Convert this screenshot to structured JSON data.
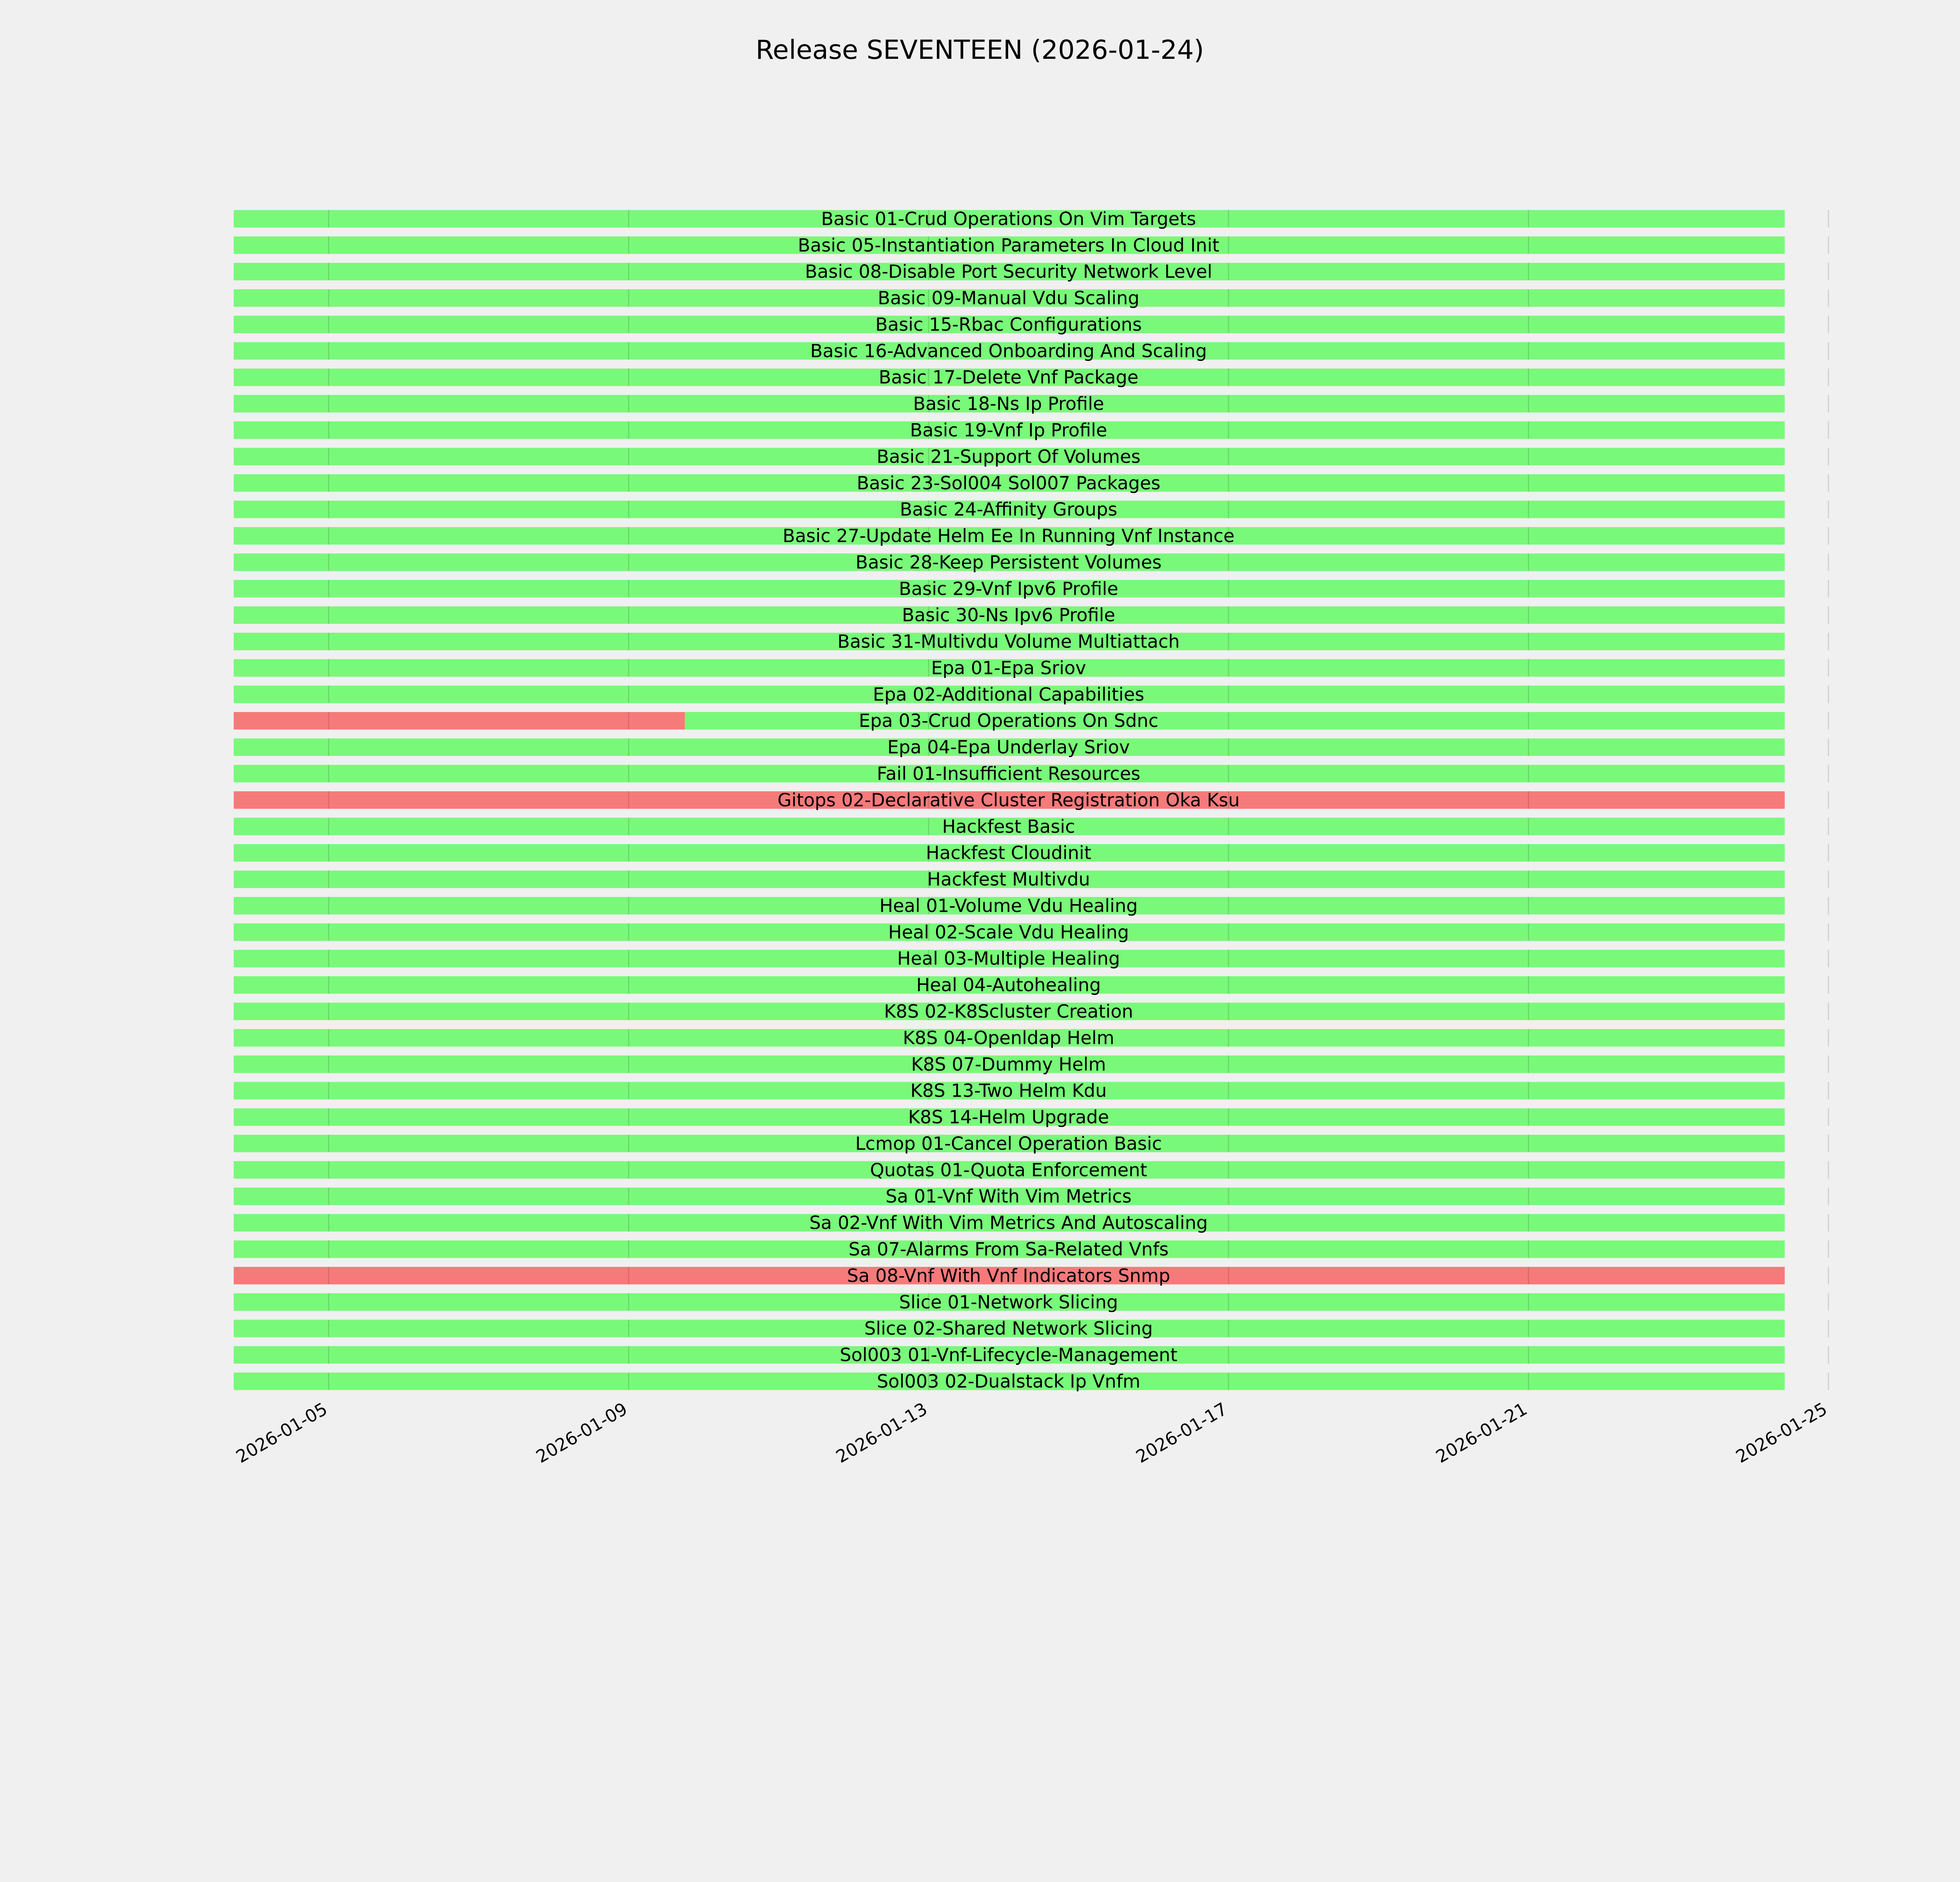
{
  "chart_data": {
    "type": "timeline",
    "title": "Release SEVENTEEN (2026-01-24)",
    "xlabel": "",
    "ylabel": "",
    "xlim": [
      "2026-01-03T17:36",
      "2026-01-25T12:00"
    ],
    "x_ticks": [
      "2026-01-05",
      "2026-01-09",
      "2026-01-13",
      "2026-01-17",
      "2026-01-21",
      "2026-01-25"
    ],
    "grid": true,
    "colors": {
      "pass": "#79f979",
      "fail": "#f77a7a",
      "background": "#f0f0f0"
    },
    "rows": [
      {
        "label": "Basic 01-Crud Operations On Vim Targets",
        "segments": [
          {
            "start": "2026-01-03T17:36",
            "end": "2026-01-24T10:00",
            "status": "pass"
          }
        ]
      },
      {
        "label": "Basic 05-Instantiation Parameters In Cloud Init",
        "segments": [
          {
            "start": "2026-01-03T17:36",
            "end": "2026-01-24T10:00",
            "status": "pass"
          }
        ]
      },
      {
        "label": "Basic 08-Disable Port Security Network Level",
        "segments": [
          {
            "start": "2026-01-03T17:36",
            "end": "2026-01-24T10:00",
            "status": "pass"
          }
        ]
      },
      {
        "label": "Basic 09-Manual Vdu Scaling",
        "segments": [
          {
            "start": "2026-01-03T17:36",
            "end": "2026-01-24T10:00",
            "status": "pass"
          }
        ]
      },
      {
        "label": "Basic 15-Rbac Configurations",
        "segments": [
          {
            "start": "2026-01-03T17:36",
            "end": "2026-01-24T10:00",
            "status": "pass"
          }
        ]
      },
      {
        "label": "Basic 16-Advanced Onboarding And Scaling",
        "segments": [
          {
            "start": "2026-01-03T17:36",
            "end": "2026-01-24T10:00",
            "status": "pass"
          }
        ]
      },
      {
        "label": "Basic 17-Delete Vnf Package",
        "segments": [
          {
            "start": "2026-01-03T17:36",
            "end": "2026-01-24T10:00",
            "status": "pass"
          }
        ]
      },
      {
        "label": "Basic 18-Ns Ip Profile",
        "segments": [
          {
            "start": "2026-01-03T17:36",
            "end": "2026-01-24T10:00",
            "status": "pass"
          }
        ]
      },
      {
        "label": "Basic 19-Vnf Ip Profile",
        "segments": [
          {
            "start": "2026-01-03T17:36",
            "end": "2026-01-24T10:00",
            "status": "pass"
          }
        ]
      },
      {
        "label": "Basic 21-Support Of Volumes",
        "segments": [
          {
            "start": "2026-01-03T17:36",
            "end": "2026-01-24T10:00",
            "status": "pass"
          }
        ]
      },
      {
        "label": "Basic 23-Sol004 Sol007 Packages",
        "segments": [
          {
            "start": "2026-01-03T17:36",
            "end": "2026-01-24T10:00",
            "status": "pass"
          }
        ]
      },
      {
        "label": "Basic 24-Affinity Groups",
        "segments": [
          {
            "start": "2026-01-03T17:36",
            "end": "2026-01-24T10:00",
            "status": "pass"
          }
        ]
      },
      {
        "label": "Basic 27-Update Helm Ee In Running Vnf Instance",
        "segments": [
          {
            "start": "2026-01-03T17:36",
            "end": "2026-01-24T10:00",
            "status": "pass"
          }
        ]
      },
      {
        "label": "Basic 28-Keep Persistent Volumes",
        "segments": [
          {
            "start": "2026-01-03T17:36",
            "end": "2026-01-24T10:00",
            "status": "pass"
          }
        ]
      },
      {
        "label": "Basic 29-Vnf Ipv6 Profile",
        "segments": [
          {
            "start": "2026-01-03T17:36",
            "end": "2026-01-24T10:00",
            "status": "pass"
          }
        ]
      },
      {
        "label": "Basic 30-Ns Ipv6 Profile",
        "segments": [
          {
            "start": "2026-01-03T17:36",
            "end": "2026-01-24T10:00",
            "status": "pass"
          }
        ]
      },
      {
        "label": "Basic 31-Multivdu Volume Multiattach",
        "segments": [
          {
            "start": "2026-01-03T17:36",
            "end": "2026-01-24T10:00",
            "status": "pass"
          }
        ]
      },
      {
        "label": "Epa 01-Epa Sriov",
        "segments": [
          {
            "start": "2026-01-03T17:36",
            "end": "2026-01-24T10:00",
            "status": "pass"
          }
        ]
      },
      {
        "label": "Epa 02-Additional Capabilities",
        "segments": [
          {
            "start": "2026-01-03T17:36",
            "end": "2026-01-24T10:00",
            "status": "pass"
          }
        ]
      },
      {
        "label": "Epa 03-Crud Operations On Sdnc",
        "segments": [
          {
            "start": "2026-01-03T17:36",
            "end": "2026-01-09T18:00",
            "status": "fail"
          },
          {
            "start": "2026-01-09T18:00",
            "end": "2026-01-24T10:00",
            "status": "pass"
          }
        ]
      },
      {
        "label": "Epa 04-Epa Underlay Sriov",
        "segments": [
          {
            "start": "2026-01-03T17:36",
            "end": "2026-01-24T10:00",
            "status": "pass"
          }
        ]
      },
      {
        "label": "Fail 01-Insufficient Resources",
        "segments": [
          {
            "start": "2026-01-03T17:36",
            "end": "2026-01-24T10:00",
            "status": "pass"
          }
        ]
      },
      {
        "label": "Gitops 02-Declarative Cluster Registration Oka Ksu",
        "segments": [
          {
            "start": "2026-01-03T17:36",
            "end": "2026-01-24T10:00",
            "status": "fail"
          }
        ]
      },
      {
        "label": "Hackfest Basic",
        "segments": [
          {
            "start": "2026-01-03T17:36",
            "end": "2026-01-24T10:00",
            "status": "pass"
          }
        ]
      },
      {
        "label": "Hackfest Cloudinit",
        "segments": [
          {
            "start": "2026-01-03T17:36",
            "end": "2026-01-24T10:00",
            "status": "pass"
          }
        ]
      },
      {
        "label": "Hackfest Multivdu",
        "segments": [
          {
            "start": "2026-01-03T17:36",
            "end": "2026-01-24T10:00",
            "status": "pass"
          }
        ]
      },
      {
        "label": "Heal 01-Volume Vdu Healing",
        "segments": [
          {
            "start": "2026-01-03T17:36",
            "end": "2026-01-24T10:00",
            "status": "pass"
          }
        ]
      },
      {
        "label": "Heal 02-Scale Vdu Healing",
        "segments": [
          {
            "start": "2026-01-03T17:36",
            "end": "2026-01-24T10:00",
            "status": "pass"
          }
        ]
      },
      {
        "label": "Heal 03-Multiple Healing",
        "segments": [
          {
            "start": "2026-01-03T17:36",
            "end": "2026-01-24T10:00",
            "status": "pass"
          }
        ]
      },
      {
        "label": "Heal 04-Autohealing",
        "segments": [
          {
            "start": "2026-01-03T17:36",
            "end": "2026-01-24T10:00",
            "status": "pass"
          }
        ]
      },
      {
        "label": "K8S 02-K8Scluster Creation",
        "segments": [
          {
            "start": "2026-01-03T17:36",
            "end": "2026-01-24T10:00",
            "status": "pass"
          }
        ]
      },
      {
        "label": "K8S 04-Openldap Helm",
        "segments": [
          {
            "start": "2026-01-03T17:36",
            "end": "2026-01-24T10:00",
            "status": "pass"
          }
        ]
      },
      {
        "label": "K8S 07-Dummy Helm",
        "segments": [
          {
            "start": "2026-01-03T17:36",
            "end": "2026-01-24T10:00",
            "status": "pass"
          }
        ]
      },
      {
        "label": "K8S 13-Two Helm Kdu",
        "segments": [
          {
            "start": "2026-01-03T17:36",
            "end": "2026-01-24T10:00",
            "status": "pass"
          }
        ]
      },
      {
        "label": "K8S 14-Helm Upgrade",
        "segments": [
          {
            "start": "2026-01-03T17:36",
            "end": "2026-01-24T10:00",
            "status": "pass"
          }
        ]
      },
      {
        "label": "Lcmop 01-Cancel Operation Basic",
        "segments": [
          {
            "start": "2026-01-03T17:36",
            "end": "2026-01-24T10:00",
            "status": "pass"
          }
        ]
      },
      {
        "label": "Quotas 01-Quota Enforcement",
        "segments": [
          {
            "start": "2026-01-03T17:36",
            "end": "2026-01-24T10:00",
            "status": "pass"
          }
        ]
      },
      {
        "label": "Sa 01-Vnf With Vim Metrics",
        "segments": [
          {
            "start": "2026-01-03T17:36",
            "end": "2026-01-24T10:00",
            "status": "pass"
          }
        ]
      },
      {
        "label": "Sa 02-Vnf With Vim Metrics And Autoscaling",
        "segments": [
          {
            "start": "2026-01-03T17:36",
            "end": "2026-01-24T10:00",
            "status": "pass"
          }
        ]
      },
      {
        "label": "Sa 07-Alarms From Sa-Related Vnfs",
        "segments": [
          {
            "start": "2026-01-03T17:36",
            "end": "2026-01-24T10:00",
            "status": "pass"
          }
        ]
      },
      {
        "label": "Sa 08-Vnf With Vnf Indicators Snmp",
        "segments": [
          {
            "start": "2026-01-03T17:36",
            "end": "2026-01-24T10:00",
            "status": "fail"
          }
        ]
      },
      {
        "label": "Slice 01-Network Slicing",
        "segments": [
          {
            "start": "2026-01-03T17:36",
            "end": "2026-01-24T10:00",
            "status": "pass"
          }
        ]
      },
      {
        "label": "Slice 02-Shared Network Slicing",
        "segments": [
          {
            "start": "2026-01-03T17:36",
            "end": "2026-01-24T10:00",
            "status": "pass"
          }
        ]
      },
      {
        "label": "Sol003 01-Vnf-Lifecycle-Management",
        "segments": [
          {
            "start": "2026-01-03T17:36",
            "end": "2026-01-24T10:00",
            "status": "pass"
          }
        ]
      },
      {
        "label": "Sol003 02-Dualstack Ip Vnfm",
        "segments": [
          {
            "start": "2026-01-03T17:36",
            "end": "2026-01-24T10:00",
            "status": "pass"
          }
        ]
      }
    ]
  }
}
